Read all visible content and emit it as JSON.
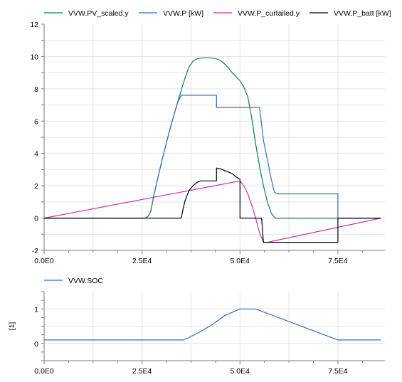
{
  "chart_data": [
    {
      "type": "line",
      "title": "",
      "xlabel": "",
      "ylabel": "",
      "xlim": [
        0,
        87000
      ],
      "ylim": [
        -2,
        12
      ],
      "xticks": [
        0,
        25000,
        50000,
        75000
      ],
      "xtick_labels": [
        "0.0E0",
        "2.5E4",
        "5.0E4",
        "7.5E4"
      ],
      "yticks": [
        -2,
        0,
        2,
        4,
        6,
        8,
        10,
        12
      ],
      "ytick_labels": [
        "-2",
        "0",
        "2",
        "4",
        "6",
        "8",
        "10",
        "12"
      ],
      "grid": true,
      "legend": "top",
      "series": [
        {
          "name": "VVW.PV_scaled.y",
          "color": "#0b7d4f",
          "x": [
            0,
            25900,
            26500,
            27200,
            28000,
            30000,
            32000,
            34000,
            35000,
            36000,
            37000,
            38000,
            39000,
            40000,
            41000,
            42000,
            43000,
            44000,
            45000,
            46000,
            47000,
            48000,
            49000,
            50000,
            51000,
            52000,
            53000,
            54000,
            55000,
            56000,
            57000,
            58000,
            59000,
            86000
          ],
          "y": [
            0,
            0,
            0.1,
            0.4,
            1.4,
            3.5,
            5.4,
            7.1,
            7.9,
            8.7,
            9.35,
            9.7,
            9.85,
            9.9,
            9.92,
            9.92,
            9.9,
            9.85,
            9.75,
            9.55,
            9.3,
            9.0,
            8.75,
            8.5,
            8.1,
            7.5,
            6.2,
            4.6,
            3.2,
            2.0,
            1.0,
            0.3,
            0,
            0
          ]
        },
        {
          "name": "VVW.P [kW]",
          "color": "#2f6eba",
          "x": [
            0,
            25900,
            26500,
            27200,
            28000,
            30000,
            32000,
            34000,
            35000,
            44000,
            44000,
            55000,
            55500,
            56000,
            57000,
            58000,
            58800,
            59500,
            75000,
            75000,
            86000
          ],
          "y": [
            0,
            0,
            0.1,
            0.4,
            1.4,
            3.5,
            5.4,
            7.1,
            7.6,
            7.6,
            6.85,
            6.85,
            5.8,
            4.8,
            3.6,
            2.4,
            1.6,
            1.5,
            1.5,
            0,
            0
          ],
          "note_fill": "black series drawn on top"
        },
        {
          "name": "VVW.P_curtailed.y",
          "color": "#cf2f9b",
          "x": [
            0,
            50000,
            51000,
            52000,
            53000,
            54000,
            55000,
            56000,
            57000,
            86000
          ],
          "y": [
            0,
            2.3,
            2.0,
            1.5,
            0.8,
            0.0,
            -0.9,
            -1.5,
            -1.5,
            0
          ],
          "note": "visible only around 5.0E4-5.7E4"
        },
        {
          "name": "VVW.P_batt [kW]",
          "color": "#000000",
          "x": [
            0,
            35000,
            35500,
            36000,
            37000,
            38000,
            39000,
            40000,
            41000,
            42000,
            43000,
            43500,
            44000,
            44000,
            45000,
            46000,
            47000,
            48000,
            49000,
            50000,
            50000,
            52000,
            52000,
            53000,
            54000,
            55000,
            55500,
            56000,
            75000,
            75000,
            86000
          ],
          "y": [
            0,
            0,
            0.6,
            1.1,
            1.7,
            2.0,
            2.2,
            2.3,
            2.3,
            2.3,
            2.3,
            2.3,
            2.3,
            3.1,
            3.05,
            2.95,
            2.85,
            2.75,
            2.55,
            2.4,
            0,
            0,
            0,
            0,
            0,
            0,
            0,
            -1.5,
            -1.5,
            0,
            0
          ]
        }
      ]
    },
    {
      "type": "line",
      "title": "",
      "xlabel": "",
      "ylabel": "[1]",
      "xlim": [
        0,
        87000
      ],
      "ylim": [
        -0.5,
        1.5
      ],
      "xticks": [
        0,
        25000,
        50000,
        75000
      ],
      "xtick_labels": [
        "0.0E0",
        "2.5E4",
        "5.0E4",
        "7.5E4"
      ],
      "yticks": [
        0,
        1
      ],
      "ytick_labels": [
        "0",
        "1"
      ],
      "grid": true,
      "legend": "top",
      "series": [
        {
          "name": "VVW.SOC",
          "color": "#2f6eba",
          "x": [
            0,
            35500,
            37000,
            40000,
            43000,
            46000,
            50000,
            54000,
            75000,
            86000
          ],
          "y": [
            0.1,
            0.1,
            0.17,
            0.35,
            0.55,
            0.8,
            1.0,
            1.0,
            0.1,
            0.1
          ]
        }
      ]
    }
  ]
}
